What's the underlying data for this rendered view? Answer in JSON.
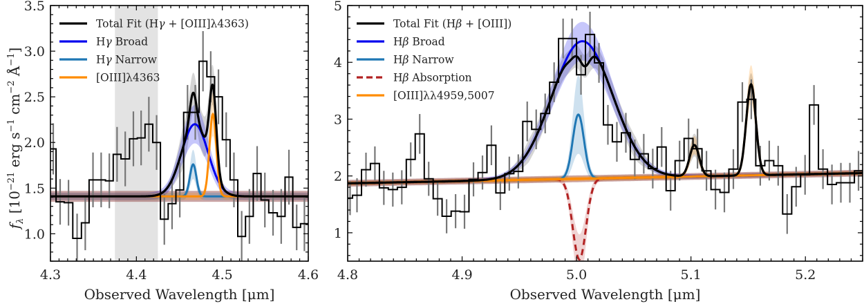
{
  "chart_data": [
    {
      "type": "line",
      "panel": "left",
      "title": "",
      "xlabel": "Observed Wavelength [μm]",
      "ylabel": "f_λ [10^-21 erg s^-1 cm^-2 Å^-1]",
      "ylabel_parts": {
        "f": "f",
        "lambda": "λ",
        "bracket_open": " [10",
        "exp1": "−21",
        "erg": " erg s",
        "exp2": "−1",
        "cm": " cm",
        "exp3": "−2",
        "ang": " Å",
        "exp4": "−1",
        "bracket_close": "]"
      },
      "xlim": [
        4.3,
        4.6
      ],
      "ylim": [
        0.7,
        3.5
      ],
      "xticks": [
        4.3,
        4.4,
        4.5,
        4.6
      ],
      "xtick_labels": [
        "4.3",
        "4.4",
        "4.5",
        "4.6"
      ],
      "yticks": [
        1.0,
        1.5,
        2.0,
        2.5,
        3.0,
        3.5
      ],
      "ytick_labels": [
        "1.0",
        "1.5",
        "2.0",
        "2.5",
        "3.0",
        "3.5"
      ],
      "grid": false,
      "legend_position": "top-left",
      "shaded_region": {
        "x0": 4.375,
        "x1": 4.425,
        "color": "#e3e3e3"
      },
      "data_steps": {
        "bin_edges": [
          4.3,
          4.3065,
          4.316,
          4.326,
          4.336,
          4.345,
          4.354,
          4.364,
          4.373,
          4.382,
          4.392,
          4.401,
          4.41,
          4.419,
          4.428,
          4.437,
          4.446,
          4.455,
          4.464,
          4.473,
          4.482,
          4.491,
          4.5,
          4.509,
          4.518,
          4.527,
          4.536,
          4.545,
          4.554,
          4.564,
          4.573,
          4.582,
          4.591,
          4.6
        ],
        "values": [
          1.93,
          1.35,
          1.34,
          0.95,
          1.12,
          1.59,
          1.59,
          1.58,
          1.87,
          1.82,
          2.04,
          2.05,
          2.2,
          2.0,
          1.16,
          1.33,
          1.48,
          2.33,
          2.33,
          2.89,
          2.72,
          2.5,
          2.03,
          1.59,
          0.97,
          1.19,
          1.66,
          1.37,
          1.23,
          1.19,
          1.62,
          1.07,
          1.11
        ],
        "errors": [
          0.28,
          0.25,
          0.25,
          0.27,
          0.3,
          0.3,
          0.3,
          0.3,
          0.3,
          0.3,
          0.3,
          0.3,
          0.3,
          0.3,
          0.28,
          0.28,
          0.3,
          0.3,
          0.3,
          0.33,
          0.28,
          0.3,
          0.3,
          0.3,
          0.28,
          0.3,
          0.3,
          0.3,
          0.25,
          0.3,
          0.3,
          0.25,
          0.3
        ]
      },
      "model": {
        "continuum": {
          "a": 1.41,
          "slope": 0.0
        },
        "components": [
          {
            "name": "Hγ Broad",
            "center": 4.468,
            "amp": 0.79,
            "sigma": 0.0155,
            "color": "#0000ee",
            "band": 0.17
          },
          {
            "name": "Hγ Narrow",
            "center": 4.466,
            "amp": 0.35,
            "sigma": 0.0038,
            "color": "#1f77b4",
            "band": 0.12
          },
          {
            "name": "[OIII]λ4363",
            "center": 4.489,
            "amp": 0.9,
            "sigma": 0.004,
            "color": "#ff8c00",
            "band": 0.2
          }
        ],
        "total_color": "#000000",
        "total_band": 0.22
      },
      "legend": [
        {
          "label_pre": "Total Fit (H",
          "label_greek": "γ",
          "label_post": " + [OIII]λ4363)",
          "color": "#000000",
          "style": "solid"
        },
        {
          "label_pre": "H",
          "label_greek": "γ",
          "label_post": " Broad",
          "color": "#0000ee",
          "style": "solid"
        },
        {
          "label_pre": "H",
          "label_greek": "γ",
          "label_post": " Narrow",
          "color": "#1f77b4",
          "style": "solid"
        },
        {
          "label_pre": "[OIII]λ4363",
          "label_greek": "",
          "label_post": "",
          "color": "#ff8c00",
          "style": "solid"
        }
      ]
    },
    {
      "type": "line",
      "panel": "right",
      "title": "",
      "xlabel": "Observed Wavelength [μm]",
      "ylabel": "",
      "xlim": [
        4.8,
        5.25
      ],
      "ylim": [
        0.5,
        5.0
      ],
      "xticks": [
        4.8,
        4.9,
        5.0,
        5.1,
        5.2
      ],
      "xtick_labels": [
        "4.8",
        "4.9",
        "5.0",
        "5.1",
        "5.2"
      ],
      "yticks": [
        1,
        2,
        3,
        4,
        5
      ],
      "ytick_labels": [
        "1",
        "2",
        "3",
        "4",
        "5"
      ],
      "grid": false,
      "legend_position": "top-left",
      "data_steps": {
        "bin_edges": [
          4.8,
          4.8042,
          4.8121,
          4.8199,
          4.8277,
          4.8355,
          4.8434,
          4.8512,
          4.859,
          4.8669,
          4.8747,
          4.8825,
          4.8904,
          4.8982,
          4.906,
          4.9139,
          4.9217,
          4.9295,
          4.9373,
          4.9452,
          4.953,
          4.9608,
          4.9687,
          4.9765,
          4.9843,
          4.9922,
          5.0,
          5.0078,
          5.0157,
          5.0235,
          5.0313,
          5.0392,
          5.047,
          5.0548,
          5.0627,
          5.0705,
          5.0783,
          5.0861,
          5.094,
          5.1018,
          5.1096,
          5.1175,
          5.1253,
          5.1331,
          5.141,
          5.1488,
          5.1566,
          5.1645,
          5.1723,
          5.1801,
          5.188,
          5.1958,
          5.2036,
          5.2114,
          5.2193,
          5.2271,
          5.2349,
          5.2428,
          5.25
        ],
        "values": [
          1.61,
          1.66,
          2.11,
          2.22,
          1.79,
          1.76,
          1.8,
          2.29,
          2.74,
          1.95,
          1.6,
          1.29,
          1.38,
          1.37,
          1.94,
          2.06,
          2.54,
          1.7,
          2.04,
          2.08,
          2.96,
          2.82,
          3.1,
          3.65,
          4.42,
          4.42,
          3.78,
          4.49,
          3.99,
          2.9,
          2.6,
          2.76,
          2.29,
          2.39,
          2.13,
          2.51,
          1.74,
          2.27,
          2.66,
          2.48,
          2.09,
          1.76,
          1.71,
          2.12,
          3.3,
          3.35,
          2.18,
          2.27,
          2.18,
          1.33,
          1.81,
          2.02,
          3.25,
          2.12,
          1.85,
          1.88,
          1.88,
          2.09
        ],
        "errors": [
          0.3,
          0.3,
          0.3,
          0.3,
          0.3,
          0.3,
          0.3,
          0.3,
          0.35,
          0.3,
          0.3,
          0.3,
          0.3,
          0.3,
          0.3,
          0.3,
          0.35,
          0.3,
          0.3,
          0.3,
          0.35,
          0.35,
          0.35,
          0.35,
          0.35,
          0.35,
          0.35,
          0.4,
          0.35,
          0.35,
          0.35,
          0.35,
          0.35,
          0.35,
          0.35,
          0.35,
          0.35,
          0.35,
          0.35,
          0.35,
          0.35,
          0.35,
          0.35,
          0.35,
          0.35,
          0.35,
          0.35,
          0.35,
          0.35,
          0.35,
          0.35,
          0.35,
          0.35,
          0.35,
          0.35,
          0.35,
          0.35,
          0.35
        ]
      },
      "model": {
        "continuum": {
          "a": 1.87,
          "slope": 0.4
        },
        "components": [
          {
            "name": "Hβ Broad",
            "center": 5.005,
            "amp": 2.42,
            "sigma": 0.0265,
            "color": "#0000ee",
            "band": 0.3,
            "style": "solid"
          },
          {
            "name": "Hβ Narrow",
            "center": 5.0016,
            "amp": 1.13,
            "sigma": 0.0049,
            "color": "#1f77b4",
            "band": 0.65,
            "style": "solid"
          },
          {
            "name": "Hβ Absorption",
            "center": 5.0025,
            "amp": -1.42,
            "sigma": 0.0058,
            "color": "#b22222",
            "band": 0.4,
            "style": "dashed"
          },
          {
            "name": "[OIII]λ4959",
            "center": 5.103,
            "amp": 0.55,
            "sigma": 0.0042,
            "color": "#ff8c00",
            "band": 0.12,
            "style": "solid"
          },
          {
            "name": "[OIII]λ5007",
            "center": 5.1525,
            "amp": 1.6,
            "sigma": 0.0042,
            "color": "#ff8c00",
            "band": 0.3,
            "style": "solid"
          }
        ],
        "total_color": "#000000",
        "total_band": 0.2
      },
      "legend": [
        {
          "label_pre": "Total Fit (H",
          "label_greek": "β",
          "label_post": " + [OIII])",
          "color": "#000000",
          "style": "solid"
        },
        {
          "label_pre": "H",
          "label_greek": "β",
          "label_post": " Broad",
          "color": "#0000ee",
          "style": "solid"
        },
        {
          "label_pre": "H",
          "label_greek": "β",
          "label_post": " Narrow",
          "color": "#1f77b4",
          "style": "solid"
        },
        {
          "label_pre": "H",
          "label_greek": "β",
          "label_post": " Absorption",
          "color": "#b22222",
          "style": "dashed"
        },
        {
          "label_pre": "[OIII]λλ4959,5007",
          "label_greek": "",
          "label_post": "",
          "color": "#ff8c00",
          "style": "solid"
        }
      ]
    }
  ]
}
